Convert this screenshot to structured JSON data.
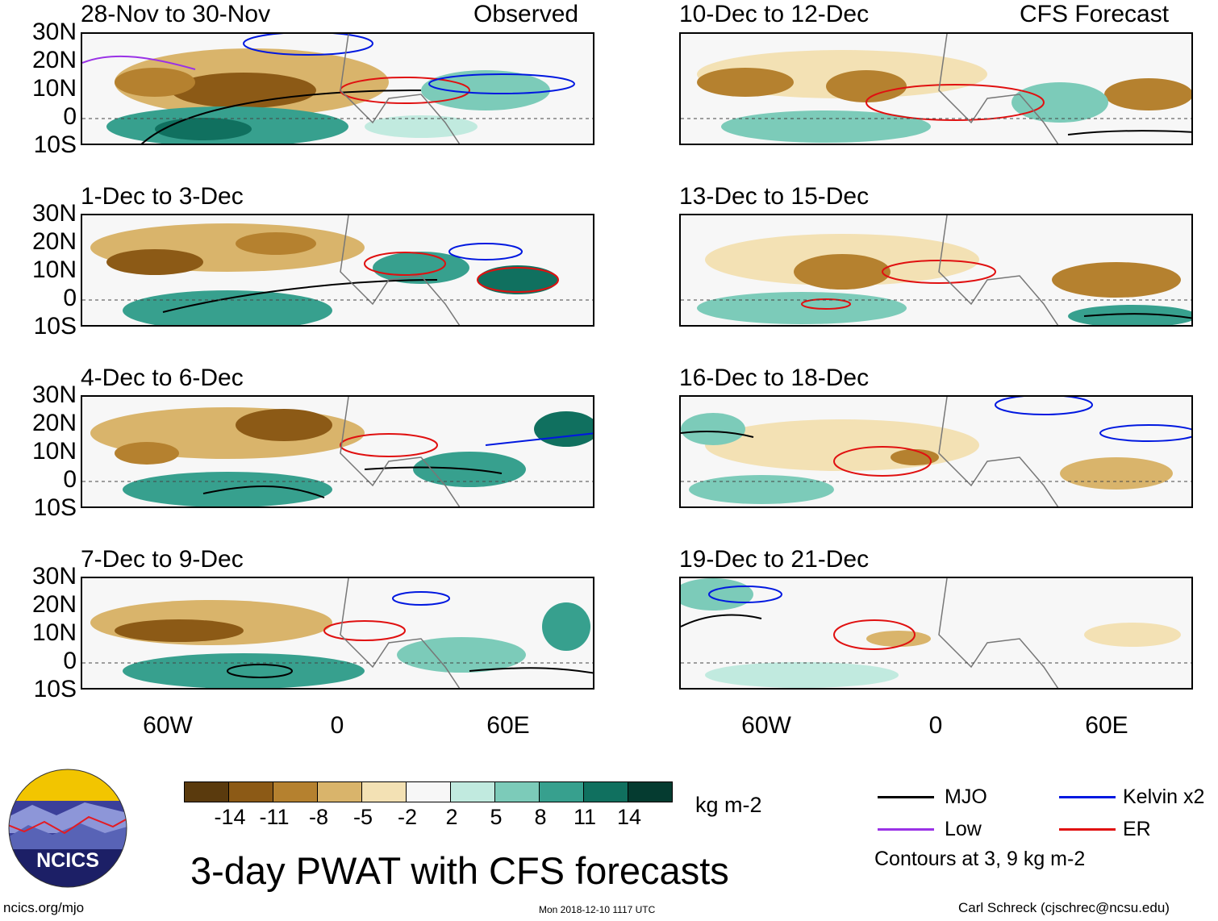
{
  "headers": {
    "observed": "Observed",
    "forecast": "CFS Forecast"
  },
  "lat_labels": [
    "30N",
    "20N",
    "10N",
    "0",
    "10S"
  ],
  "lon_labels": [
    "60W",
    "0",
    "60E"
  ],
  "panels": [
    {
      "title": "28-Nov to 30-Nov"
    },
    {
      "title": "1-Dec to 3-Dec"
    },
    {
      "title": "4-Dec to 6-Dec"
    },
    {
      "title": "7-Dec to 9-Dec"
    },
    {
      "title": "10-Dec to 12-Dec"
    },
    {
      "title": "13-Dec to 15-Dec"
    },
    {
      "title": "16-Dec to 18-Dec"
    },
    {
      "title": "19-Dec to 21-Dec"
    }
  ],
  "colorbar": {
    "labels": [
      "-14",
      "-11",
      "-8",
      "-5",
      "-2",
      "2",
      "5",
      "8",
      "11",
      "14"
    ],
    "colors": [
      "#5a3a0d",
      "#8c5a16",
      "#b5812f",
      "#d9b46b",
      "#f3e1b4",
      "#f7f7f7",
      "#c1eadf",
      "#7ccbb9",
      "#37a08e",
      "#10705f",
      "#053b30"
    ],
    "units": "kg m-2"
  },
  "title": "3-day PWAT with CFS forecasts",
  "legend": {
    "items": [
      {
        "label": "MJO",
        "color": "#000000"
      },
      {
        "label": "Kelvin x2",
        "color": "#0018e0"
      },
      {
        "label": "Low",
        "color": "#9a32e6"
      },
      {
        "label": "ER",
        "color": "#e01010"
      }
    ],
    "note": "Contours at 3, 9 kg m-2"
  },
  "logo": {
    "text": "NCICS"
  },
  "footer": {
    "url": "ncics.org/mjo",
    "timestamp": "Mon 2018-12-10 1117 UTC",
    "author": "Carl Schreck (cjschrec@ncsu.edu)"
  }
}
